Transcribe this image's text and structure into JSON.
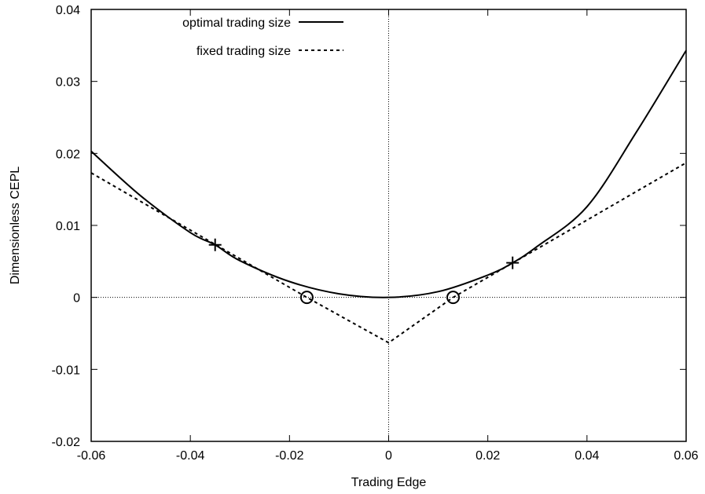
{
  "chart_data": {
    "type": "line",
    "title": "",
    "xlabel": "Trading Edge",
    "ylabel": "Dimensionless CEPL",
    "xlim": [
      -0.06,
      0.06
    ],
    "ylim": [
      -0.02,
      0.04
    ],
    "x_ticks": [
      -0.06,
      -0.04,
      -0.02,
      0,
      0.02,
      0.04,
      0.06
    ],
    "x_tick_labels": [
      "-0.06",
      "-0.04",
      "-0.02",
      "0",
      "0.02",
      "0.04",
      "0.06"
    ],
    "y_ticks": [
      -0.02,
      -0.01,
      0,
      0.01,
      0.02,
      0.03,
      0.04
    ],
    "y_tick_labels": [
      "-0.02",
      "-0.01",
      "0",
      "0.01",
      "0.02",
      "0.03",
      "0.04"
    ],
    "grid": false,
    "zero_lines": true,
    "legend_placement": "top-left",
    "series": [
      {
        "name": "optimal trading size",
        "style": "solid",
        "x": [
          -0.06,
          -0.05,
          -0.04,
          -0.035,
          -0.03,
          -0.02,
          -0.01,
          0,
          0.01,
          0.02,
          0.025,
          0.03,
          0.04,
          0.05,
          0.06
        ],
        "y": [
          0.0203,
          0.0141,
          0.009,
          0.0073,
          0.0051,
          0.0022,
          0.0005,
          0,
          0.0008,
          0.0031,
          0.0048,
          0.0071,
          0.0126,
          0.023,
          0.0343
        ]
      },
      {
        "name": "fixed trading size",
        "style": "dashed",
        "x": [
          -0.06,
          -0.0165,
          0,
          0.013,
          0.06
        ],
        "y": [
          0.0173,
          0,
          -0.0063,
          0,
          0.0187
        ]
      }
    ],
    "markers": [
      {
        "symbol": "plus",
        "x": -0.035,
        "y": 0.0073
      },
      {
        "symbol": "plus",
        "x": 0.025,
        "y": 0.0048
      },
      {
        "symbol": "circle",
        "x": -0.0165,
        "y": 0
      },
      {
        "symbol": "circle",
        "x": 0.013,
        "y": 0
      }
    ]
  }
}
